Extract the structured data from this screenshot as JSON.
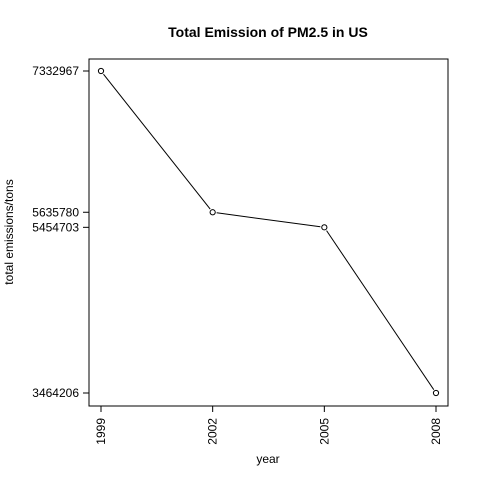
{
  "chart_data": {
    "type": "line",
    "title": "Total Emission of PM2.5 in US",
    "xlabel": "year",
    "ylabel": "total emissions/tons",
    "x": [
      1999,
      2002,
      2005,
      2008
    ],
    "x_tick_labels": [
      "1999",
      "2002",
      "2005",
      "2008"
    ],
    "y": [
      7332967,
      5635780,
      5454703,
      3464206
    ],
    "y_tick_labels": [
      "7332967",
      "5635780",
      "5454703",
      "3464206"
    ],
    "xlim": [
      1999,
      2008
    ],
    "ylim": [
      3464206,
      7332967
    ],
    "marker": "open-circle",
    "line_color": "#000000",
    "grid": false,
    "legend": "none"
  }
}
